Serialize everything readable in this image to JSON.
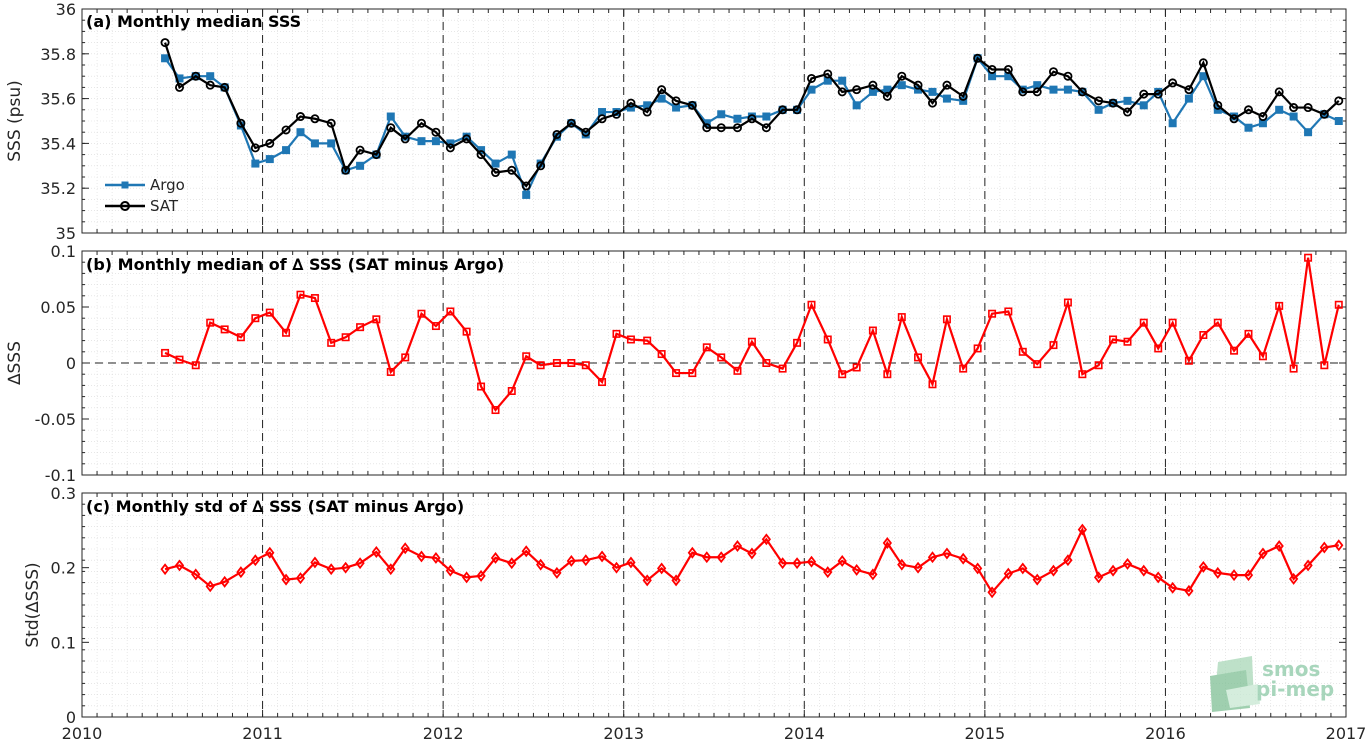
{
  "chart_data": [
    {
      "type": "line",
      "title": "(a) Monthly median SSS",
      "xlabel": "",
      "ylabel": "SSS (psu)",
      "xlim": [
        2010,
        2017
      ],
      "ylim": [
        35,
        36
      ],
      "yticks": [
        "35",
        "35.2",
        "35.4",
        "35.6",
        "35.8",
        "36"
      ],
      "grid": true,
      "legend_position": "bottom-left",
      "x": [
        2010.46,
        2010.54,
        2010.63,
        2010.71,
        2010.79,
        2010.88,
        2010.96,
        2011.04,
        2011.13,
        2011.21,
        2011.29,
        2011.38,
        2011.46,
        2011.54,
        2011.63,
        2011.71,
        2011.79,
        2011.88,
        2011.96,
        2012.04,
        2012.13,
        2012.21,
        2012.29,
        2012.38,
        2012.46,
        2012.54,
        2012.63,
        2012.71,
        2012.79,
        2012.88,
        2012.96,
        2013.04,
        2013.13,
        2013.21,
        2013.29,
        2013.38,
        2013.46,
        2013.54,
        2013.63,
        2013.71,
        2013.79,
        2013.88,
        2013.96,
        2014.04,
        2014.13,
        2014.21,
        2014.29,
        2014.38,
        2014.46,
        2014.54,
        2014.63,
        2014.71,
        2014.79,
        2014.88,
        2014.96,
        2015.04,
        2015.13,
        2015.21,
        2015.29,
        2015.38,
        2015.46,
        2015.54,
        2015.63,
        2015.71,
        2015.79,
        2015.88,
        2015.96,
        2016.04,
        2016.13,
        2016.21,
        2016.29,
        2016.38,
        2016.46,
        2016.54,
        2016.63,
        2016.71,
        2016.79,
        2016.88,
        2016.96
      ],
      "series": [
        {
          "name": "Argo",
          "color": "#1f77b4",
          "marker": "square",
          "values": [
            35.78,
            35.69,
            35.7,
            35.7,
            35.65,
            35.48,
            35.31,
            35.33,
            35.37,
            35.45,
            35.4,
            35.4,
            35.28,
            35.3,
            35.35,
            35.52,
            35.43,
            35.41,
            35.41,
            35.4,
            35.43,
            35.37,
            35.31,
            35.35,
            35.17,
            35.31,
            35.43,
            35.49,
            35.44,
            35.54,
            35.54,
            35.56,
            35.57,
            35.6,
            35.56,
            35.57,
            35.49,
            35.53,
            35.51,
            35.52,
            35.52,
            35.55,
            35.55,
            35.64,
            35.68,
            35.68,
            35.57,
            35.63,
            35.64,
            35.66,
            35.64,
            35.63,
            35.6,
            35.59,
            35.78,
            35.7,
            35.7,
            35.64,
            35.66,
            35.64,
            35.64,
            35.63,
            35.55,
            35.58,
            35.59,
            35.57,
            35.63,
            35.49,
            35.6,
            35.7,
            35.55,
            35.52,
            35.47,
            35.49,
            35.55,
            35.52,
            35.45,
            35.53,
            35.5
          ]
        },
        {
          "name": "SAT",
          "color": "#000000",
          "marker": "circle",
          "values": [
            35.85,
            35.65,
            35.7,
            35.66,
            35.65,
            35.49,
            35.38,
            35.4,
            35.46,
            35.52,
            35.51,
            35.49,
            35.28,
            35.37,
            35.35,
            35.47,
            35.42,
            35.49,
            35.45,
            35.38,
            35.42,
            35.35,
            35.27,
            35.28,
            35.21,
            35.3,
            35.44,
            35.49,
            35.45,
            35.51,
            35.53,
            35.58,
            35.54,
            35.64,
            35.59,
            35.57,
            35.47,
            35.47,
            35.47,
            35.51,
            35.47,
            35.55,
            35.55,
            35.69,
            35.71,
            35.63,
            35.64,
            35.66,
            35.61,
            35.7,
            35.66,
            35.58,
            35.66,
            35.61,
            35.78,
            35.73,
            35.73,
            35.63,
            35.63,
            35.72,
            35.7,
            35.63,
            35.59,
            35.58,
            35.54,
            35.62,
            35.62,
            35.67,
            35.64,
            35.76,
            35.57,
            35.51,
            35.55,
            35.52,
            35.63,
            35.56,
            35.56,
            35.53,
            35.59
          ]
        }
      ]
    },
    {
      "type": "line",
      "title": "(b) Monthly median of ∆ SSS (SAT minus Argo)",
      "xlabel": "",
      "ylabel": "∆SSS",
      "xlim": [
        2010,
        2017
      ],
      "ylim": [
        -0.1,
        0.1
      ],
      "yticks": [
        "-0.1",
        "-0.05",
        "0",
        "0.05",
        "0.1"
      ],
      "grid": true,
      "zero_line": true,
      "x": [
        2010.46,
        2010.54,
        2010.63,
        2010.71,
        2010.79,
        2010.88,
        2010.96,
        2011.04,
        2011.13,
        2011.21,
        2011.29,
        2011.38,
        2011.46,
        2011.54,
        2011.63,
        2011.71,
        2011.79,
        2011.88,
        2011.96,
        2012.04,
        2012.13,
        2012.21,
        2012.29,
        2012.38,
        2012.46,
        2012.54,
        2012.63,
        2012.71,
        2012.79,
        2012.88,
        2012.96,
        2013.04,
        2013.13,
        2013.21,
        2013.29,
        2013.38,
        2013.46,
        2013.54,
        2013.63,
        2013.71,
        2013.79,
        2013.88,
        2013.96,
        2014.04,
        2014.13,
        2014.21,
        2014.29,
        2014.38,
        2014.46,
        2014.54,
        2014.63,
        2014.71,
        2014.79,
        2014.88,
        2014.96,
        2015.04,
        2015.13,
        2015.21,
        2015.29,
        2015.38,
        2015.46,
        2015.54,
        2015.63,
        2015.71,
        2015.79,
        2015.88,
        2015.96,
        2016.04,
        2016.13,
        2016.21,
        2016.29,
        2016.38,
        2016.46,
        2016.54,
        2016.63,
        2016.71,
        2016.79,
        2016.88,
        2016.96
      ],
      "series": [
        {
          "name": "",
          "color": "#ff0000",
          "marker": "square",
          "values": [
            0.009,
            0.003,
            -0.002,
            0.036,
            0.03,
            0.023,
            0.04,
            0.045,
            0.027,
            0.061,
            0.058,
            0.018,
            0.023,
            0.032,
            0.039,
            -0.008,
            0.005,
            0.044,
            0.033,
            0.046,
            0.028,
            -0.021,
            -0.042,
            -0.025,
            0.006,
            -0.002,
            0.0,
            0.0,
            -0.002,
            -0.017,
            0.026,
            0.021,
            0.02,
            0.008,
            -0.009,
            -0.009,
            0.014,
            0.005,
            -0.007,
            0.019,
            0.0,
            -0.005,
            0.018,
            0.052,
            0.021,
            -0.01,
            -0.004,
            0.029,
            -0.01,
            0.041,
            0.005,
            -0.019,
            0.039,
            -0.005,
            0.013,
            0.044,
            0.046,
            0.01,
            -0.001,
            0.016,
            0.054,
            -0.01,
            -0.002,
            0.021,
            0.019,
            0.036,
            0.013,
            0.036,
            0.002,
            0.025,
            0.036,
            0.011,
            0.026,
            0.006,
            0.051,
            -0.005,
            0.094,
            -0.002,
            0.052
          ]
        }
      ]
    },
    {
      "type": "line",
      "title": "(c) Monthly std of ∆ SSS (SAT minus Argo)",
      "xlabel": "",
      "ylabel": "Std(∆SSS)",
      "xlim": [
        2010,
        2017
      ],
      "ylim": [
        0,
        0.3
      ],
      "yticks": [
        "0",
        "0.1",
        "0.2",
        "0.3"
      ],
      "xticks": [
        "2010",
        "2011",
        "2012",
        "2013",
        "2014",
        "2015",
        "2016",
        "2017"
      ],
      "grid": true,
      "x": [
        2010.46,
        2010.54,
        2010.63,
        2010.71,
        2010.79,
        2010.88,
        2010.96,
        2011.04,
        2011.13,
        2011.21,
        2011.29,
        2011.38,
        2011.46,
        2011.54,
        2011.63,
        2011.71,
        2011.79,
        2011.88,
        2011.96,
        2012.04,
        2012.13,
        2012.21,
        2012.29,
        2012.38,
        2012.46,
        2012.54,
        2012.63,
        2012.71,
        2012.79,
        2012.88,
        2012.96,
        2013.04,
        2013.13,
        2013.21,
        2013.29,
        2013.38,
        2013.46,
        2013.54,
        2013.63,
        2013.71,
        2013.79,
        2013.88,
        2013.96,
        2014.04,
        2014.13,
        2014.21,
        2014.29,
        2014.38,
        2014.46,
        2014.54,
        2014.63,
        2014.71,
        2014.79,
        2014.88,
        2014.96,
        2015.04,
        2015.13,
        2015.21,
        2015.29,
        2015.38,
        2015.46,
        2015.54,
        2015.63,
        2015.71,
        2015.79,
        2015.88,
        2015.96,
        2016.04,
        2016.13,
        2016.21,
        2016.29,
        2016.38,
        2016.46,
        2016.54,
        2016.63,
        2016.71,
        2016.79,
        2016.88,
        2016.96
      ],
      "series": [
        {
          "name": "",
          "color": "#ff0000",
          "marker": "diamond",
          "values": [
            0.198,
            0.203,
            0.191,
            0.175,
            0.181,
            0.194,
            0.21,
            0.22,
            0.184,
            0.186,
            0.207,
            0.198,
            0.2,
            0.206,
            0.221,
            0.198,
            0.226,
            0.215,
            0.213,
            0.196,
            0.187,
            0.189,
            0.213,
            0.206,
            0.222,
            0.204,
            0.193,
            0.209,
            0.21,
            0.215,
            0.2,
            0.207,
            0.183,
            0.199,
            0.183,
            0.22,
            0.214,
            0.214,
            0.229,
            0.219,
            0.238,
            0.206,
            0.206,
            0.208,
            0.194,
            0.209,
            0.197,
            0.191,
            0.233,
            0.204,
            0.2,
            0.214,
            0.219,
            0.212,
            0.199,
            0.167,
            0.192,
            0.199,
            0.184,
            0.196,
            0.21,
            0.251,
            0.187,
            0.196,
            0.205,
            0.196,
            0.187,
            0.173,
            0.169,
            0.201,
            0.193,
            0.19,
            0.19,
            0.219,
            0.229,
            0.185,
            0.203,
            0.227,
            0.23
          ]
        }
      ]
    }
  ],
  "logo": {
    "line1": "smos",
    "line2": "pi-mep"
  }
}
